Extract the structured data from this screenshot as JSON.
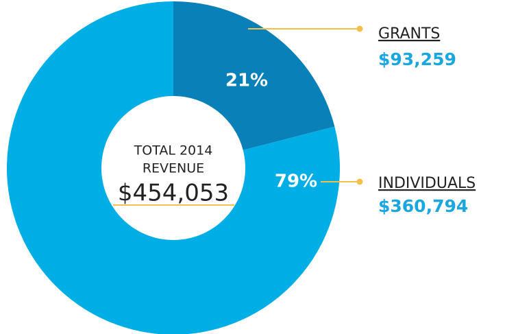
{
  "chart_data": {
    "type": "donut",
    "categories": [
      "GRANTS",
      "INDIVIDUALS"
    ],
    "values": [
      21,
      79
    ],
    "value_labels": [
      "21%",
      "79%"
    ],
    "amount_labels": [
      "$93,259",
      "$360,794"
    ],
    "colors": [
      "#0a80b8",
      "#00aee6"
    ],
    "center_label": [
      "TOTAL 2014",
      "REVENUE"
    ],
    "total_label": "$454,053"
  }
}
